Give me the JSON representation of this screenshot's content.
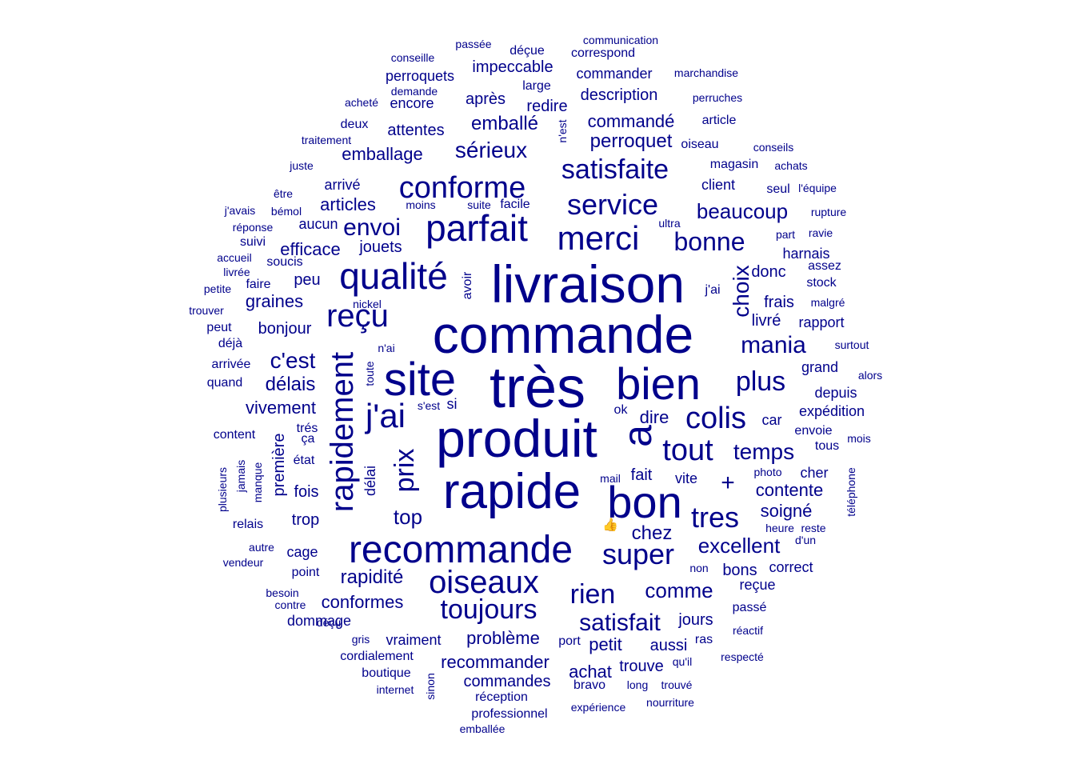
{
  "color": "#00008B",
  "words": [
    {
      "text": "très",
      "size": 72
    },
    {
      "text": "commande",
      "size": 66
    },
    {
      "text": "produit",
      "size": 66
    },
    {
      "text": "livraison",
      "size": 66
    },
    {
      "text": "rapide",
      "size": 62
    },
    {
      "text": "site",
      "size": 58
    },
    {
      "text": "bon",
      "size": 56
    },
    {
      "text": "bien",
      "size": 56
    },
    {
      "text": "a",
      "size": 50
    },
    {
      "text": "recommande",
      "size": 48
    },
    {
      "text": "parfait",
      "size": 46
    },
    {
      "text": "qualité",
      "size": 46
    },
    {
      "text": "merci",
      "size": 42
    },
    {
      "text": "j'ai",
      "size": 42
    },
    {
      "text": "oiseaux",
      "size": 40
    },
    {
      "text": "rapidement",
      "size": 40
    },
    {
      "text": "reçu",
      "size": 40
    },
    {
      "text": "conforme",
      "size": 38
    },
    {
      "text": "tout",
      "size": 38
    },
    {
      "text": "colis",
      "size": 38
    },
    {
      "text": "service",
      "size": 36
    },
    {
      "text": "super",
      "size": 36
    },
    {
      "text": "tres",
      "size": 36
    },
    {
      "text": "satisfaite",
      "size": 34
    },
    {
      "text": "prix",
      "size": 34
    },
    {
      "text": "toujours",
      "size": 34
    },
    {
      "text": "rien",
      "size": 34
    },
    {
      "text": "plus",
      "size": 34
    },
    {
      "text": "bonne",
      "size": 32
    },
    {
      "text": "envoi",
      "size": 30
    },
    {
      "text": "mania",
      "size": 30
    },
    {
      "text": "satisfait",
      "size": 30
    },
    {
      "text": "sérieux",
      "size": 28
    },
    {
      "text": "choix",
      "size": 28
    },
    {
      "text": "c'est",
      "size": 28
    },
    {
      "text": "temps",
      "size": 28
    },
    {
      "text": "comme",
      "size": 26
    },
    {
      "text": "excellent",
      "size": 26
    },
    {
      "text": "beaucoup",
      "size": 26
    },
    {
      "text": "top",
      "size": 26
    },
    {
      "text": "+",
      "size": 30
    },
    {
      "text": "rapidité",
      "size": 24
    },
    {
      "text": "délais",
      "size": 24
    },
    {
      "text": "chez",
      "size": 24
    },
    {
      "text": "emballé",
      "size": 24
    },
    {
      "text": "perroquet",
      "size": 24
    },
    {
      "text": "commandé",
      "size": 22
    },
    {
      "text": "articles",
      "size": 22
    },
    {
      "text": "emballage",
      "size": 22
    },
    {
      "text": "vivement",
      "size": 22
    },
    {
      "text": "efficace",
      "size": 22
    },
    {
      "text": "problème",
      "size": 22
    },
    {
      "text": "recommander",
      "size": 22
    },
    {
      "text": "conformes",
      "size": 22
    },
    {
      "text": "graines",
      "size": 22
    },
    {
      "text": "dire",
      "size": 22
    },
    {
      "text": "achat",
      "size": 22
    },
    {
      "text": "petit",
      "size": 22
    },
    {
      "text": "contente",
      "size": 22
    },
    {
      "text": "soigné",
      "size": 22
    },
    {
      "text": "jours",
      "size": 20
    },
    {
      "text": "frais",
      "size": 20
    },
    {
      "text": "donc",
      "size": 20
    },
    {
      "text": "livré",
      "size": 20
    },
    {
      "text": "bonjour",
      "size": 20
    },
    {
      "text": "jouets",
      "size": 20
    },
    {
      "text": "peu",
      "size": 20
    },
    {
      "text": "fois",
      "size": 20
    },
    {
      "text": "trop",
      "size": 20
    },
    {
      "text": "commandes",
      "size": 20
    },
    {
      "text": "trouve",
      "size": 20
    },
    {
      "text": "aussi",
      "size": 20
    },
    {
      "text": "fait",
      "size": 20
    },
    {
      "text": "bons",
      "size": 20
    },
    {
      "text": "impeccable",
      "size": 20
    },
    {
      "text": "attentes",
      "size": 20
    },
    {
      "text": "après",
      "size": 20
    },
    {
      "text": "redire",
      "size": 20
    },
    {
      "text": "description",
      "size": 20
    },
    {
      "text": "commander",
      "size": 18
    },
    {
      "text": "première",
      "size": 20
    },
    {
      "text": "délai",
      "size": 18
    },
    {
      "text": "harnais",
      "size": 18
    },
    {
      "text": "rapport",
      "size": 18
    },
    {
      "text": "grand",
      "size": 18
    },
    {
      "text": "depuis",
      "size": 18
    },
    {
      "text": "expédition",
      "size": 18
    },
    {
      "text": "car",
      "size": 18
    },
    {
      "text": "cher",
      "size": 18
    },
    {
      "text": "vite",
      "size": 18
    },
    {
      "text": "reçue",
      "size": 18
    },
    {
      "text": "dommage",
      "size": 18
    },
    {
      "text": "vraiment",
      "size": 18
    },
    {
      "text": "cordialement",
      "size": 16
    },
    {
      "text": "magasin",
      "size": 16
    },
    {
      "text": "client",
      "size": 18
    },
    {
      "text": "arrivé",
      "size": 18
    },
    {
      "text": "aucun",
      "size": 18
    },
    {
      "text": "soucis",
      "size": 16
    },
    {
      "text": "état",
      "size": 16
    },
    {
      "text": "cage",
      "size": 18
    },
    {
      "text": "point",
      "size": 16
    },
    {
      "text": "avoir",
      "size": 16
    },
    {
      "text": "si",
      "size": 18
    },
    {
      "text": "encore",
      "size": 18
    },
    {
      "text": "perroquets",
      "size": 18
    },
    {
      "text": "faire",
      "size": 16
    },
    {
      "text": "seul",
      "size": 16
    },
    {
      "text": "j'ai",
      "size": 16
    },
    {
      "text": "stock",
      "size": 16
    },
    {
      "text": "envoie",
      "size": 16
    },
    {
      "text": "tous",
      "size": 16
    },
    {
      "text": "port",
      "size": 16
    },
    {
      "text": "passé",
      "size": 16
    },
    {
      "text": "réactif",
      "size": 14
    },
    {
      "text": "respecté",
      "size": 14
    },
    {
      "text": "qu'il",
      "size": 14
    },
    {
      "text": "long",
      "size": 14
    },
    {
      "text": "trouvé",
      "size": 14
    },
    {
      "text": "bravo",
      "size": 16
    },
    {
      "text": "réception",
      "size": 16
    },
    {
      "text": "professionnel",
      "size": 16
    },
    {
      "text": "expérience",
      "size": 14
    },
    {
      "text": "nourriture",
      "size": 14
    },
    {
      "text": "emballée",
      "size": 14
    },
    {
      "text": "internet",
      "size": 14
    },
    {
      "text": "boutique",
      "size": 16
    },
    {
      "text": "sinon",
      "size": 14
    },
    {
      "text": "gris",
      "size": 14
    },
    {
      "text": "déçu",
      "size": 14
    },
    {
      "text": "contre",
      "size": 14
    },
    {
      "text": "besoin",
      "size": 14
    },
    {
      "text": "vendeur",
      "size": 14
    },
    {
      "text": "autre",
      "size": 14
    },
    {
      "text": "relais",
      "size": 16
    },
    {
      "text": "plusieurs",
      "size": 14
    },
    {
      "text": "jamais",
      "size": 14
    },
    {
      "text": "manque",
      "size": 14
    },
    {
      "text": "ça",
      "size": 16
    },
    {
      "text": "trés",
      "size": 16
    },
    {
      "text": "content",
      "size": 16
    },
    {
      "text": "quand",
      "size": 16
    },
    {
      "text": "arrivée",
      "size": 16
    },
    {
      "text": "déjà",
      "size": 16
    },
    {
      "text": "peut",
      "size": 16
    },
    {
      "text": "trouver",
      "size": 14
    },
    {
      "text": "petite",
      "size": 14
    },
    {
      "text": "livrée",
      "size": 14
    },
    {
      "text": "accueil",
      "size": 14
    },
    {
      "text": "suivi",
      "size": 16
    },
    {
      "text": "réponse",
      "size": 14
    },
    {
      "text": "j'avais",
      "size": 14
    },
    {
      "text": "bémol",
      "size": 14
    },
    {
      "text": "être",
      "size": 14
    },
    {
      "text": "juste",
      "size": 14
    },
    {
      "text": "traitement",
      "size": 14
    },
    {
      "text": "deux",
      "size": 16
    },
    {
      "text": "acheté",
      "size": 14
    },
    {
      "text": "demande",
      "size": 14
    },
    {
      "text": "conseille",
      "size": 14
    },
    {
      "text": "passée",
      "size": 14
    },
    {
      "text": "déçue",
      "size": 16
    },
    {
      "text": "communication",
      "size": 14
    },
    {
      "text": "correspond",
      "size": 16
    },
    {
      "text": "large",
      "size": 16
    },
    {
      "text": "marchandise",
      "size": 14
    },
    {
      "text": "perruches",
      "size": 14
    },
    {
      "text": "article",
      "size": 16
    },
    {
      "text": "oiseau",
      "size": 16
    },
    {
      "text": "conseils",
      "size": 14
    },
    {
      "text": "achats",
      "size": 14
    },
    {
      "text": "l'équipe",
      "size": 14
    },
    {
      "text": "rupture",
      "size": 14
    },
    {
      "text": "part",
      "size": 14
    },
    {
      "text": "ravie",
      "size": 14
    },
    {
      "text": "assez",
      "size": 16
    },
    {
      "text": "malgré",
      "size": 14
    },
    {
      "text": "surtout",
      "size": 14
    },
    {
      "text": "alors",
      "size": 14
    },
    {
      "text": "mois",
      "size": 14
    },
    {
      "text": "téléphone",
      "size": 14
    },
    {
      "text": "heure",
      "size": 14
    },
    {
      "text": "reste",
      "size": 14
    },
    {
      "text": "d'un",
      "size": 14
    },
    {
      "text": "correct",
      "size": 18
    },
    {
      "text": "non",
      "size": 14
    },
    {
      "text": "photo",
      "size": 14
    },
    {
      "text": "mail",
      "size": 14
    },
    {
      "text": "ok",
      "size": 16
    },
    {
      "text": "n'ai",
      "size": 14
    },
    {
      "text": "s'est",
      "size": 14
    },
    {
      "text": "toute",
      "size": 14
    },
    {
      "text": "nickel",
      "size": 14
    },
    {
      "text": "moins",
      "size": 14
    },
    {
      "text": "suite",
      "size": 14
    },
    {
      "text": "facile",
      "size": 16
    },
    {
      "text": "ultra",
      "size": 14
    },
    {
      "text": "n'est",
      "size": 14
    },
    {
      "text": "ras",
      "size": 16
    },
    {
      "text": "👍",
      "size": 16
    }
  ]
}
